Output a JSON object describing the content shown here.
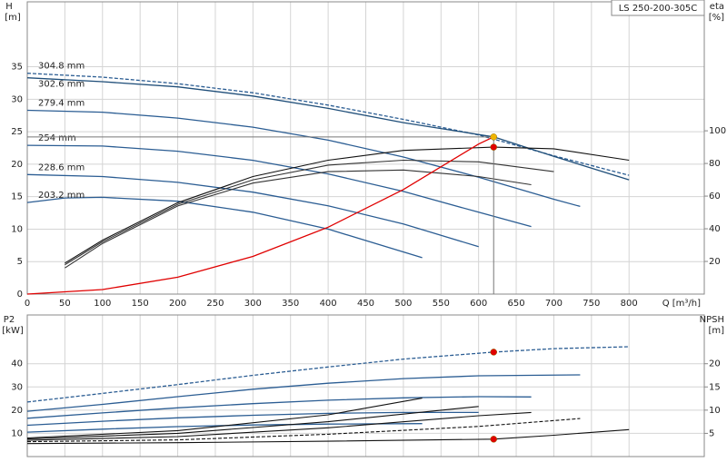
{
  "chart_data": [
    {
      "type": "line",
      "product": "LS 250-200-305C",
      "ylabel": "H",
      "yunit": "[m]",
      "y2label": "eta",
      "y2unit": "[%]",
      "xlabel": "Q [m³/h]",
      "xlim": [
        0,
        900
      ],
      "xticks": [
        0,
        50,
        100,
        150,
        200,
        250,
        300,
        350,
        400,
        450,
        500,
        550,
        600,
        650,
        700,
        750,
        800
      ],
      "ylim": [
        0,
        45
      ],
      "yticks": [
        0,
        5,
        10,
        15,
        20,
        25,
        30,
        35
      ],
      "y2lim": [
        0,
        179
      ],
      "y2ticks": [
        20,
        40,
        60,
        80,
        100
      ],
      "grid": true,
      "series": [
        {
          "name": "304.8 mm",
          "color": "#2b5d93",
          "dash": true,
          "x": [
            0,
            100,
            200,
            300,
            400,
            500,
            600,
            700,
            800
          ],
          "values": [
            34,
            33.4,
            32.4,
            31,
            29.1,
            26.9,
            24.5,
            21.3,
            18.3
          ]
        },
        {
          "name": "302.6 mm",
          "color": "#1f4e79",
          "x": [
            0,
            100,
            200,
            300,
            400,
            500,
            620,
            700,
            800
          ],
          "values": [
            33.3,
            32.7,
            31.9,
            30.5,
            28.6,
            26.4,
            24.2,
            21.2,
            17.6
          ]
        },
        {
          "name": "279.4 mm",
          "color": "#2b5d93",
          "x": [
            0,
            100,
            200,
            300,
            400,
            500,
            600,
            700,
            735
          ],
          "values": [
            28.3,
            28,
            27.1,
            25.7,
            23.7,
            21.1,
            18,
            14.6,
            13.5
          ]
        },
        {
          "name": "254 mm",
          "color": "#2b5d93",
          "x": [
            0,
            100,
            200,
            300,
            400,
            500,
            600,
            670
          ],
          "values": [
            22.9,
            22.8,
            22,
            20.6,
            18.5,
            15.8,
            12.6,
            10.4
          ]
        },
        {
          "name": "228.6 mm",
          "color": "#2b5d93",
          "x": [
            0,
            100,
            200,
            300,
            400,
            500,
            600
          ],
          "values": [
            18.4,
            18.1,
            17.2,
            15.7,
            13.6,
            10.8,
            7.3
          ]
        },
        {
          "name": "203.2 mm",
          "color": "#2b5d93",
          "x": [
            0,
            50,
            100,
            200,
            300,
            400,
            525
          ],
          "values": [
            14.1,
            14.8,
            14.9,
            14.3,
            12.6,
            10,
            5.6
          ]
        },
        {
          "color": "#111111",
          "axis": "y2",
          "x": [
            50,
            100,
            200,
            300,
            400,
            500,
            620,
            700,
            800
          ],
          "values": [
            19,
            33,
            56,
            72,
            82,
            88,
            90,
            89,
            82
          ]
        },
        {
          "color": "#333333",
          "axis": "y2",
          "x": [
            50,
            100,
            200,
            300,
            400,
            500,
            600,
            700
          ],
          "values": [
            18,
            32,
            55,
            70,
            79,
            82,
            81,
            75
          ]
        },
        {
          "color": "#333333",
          "axis": "y2",
          "x": [
            50,
            100,
            200,
            300,
            400,
            500,
            600,
            670
          ],
          "values": [
            16,
            31,
            54,
            68,
            75,
            76,
            72,
            67
          ]
        },
        {
          "color": "#e00000",
          "x": [
            0,
            100,
            200,
            300,
            400,
            500,
            600,
            620
          ],
          "values": [
            0,
            0.7,
            2.6,
            5.8,
            10.3,
            16.1,
            23.1,
            24.2
          ]
        },
        {
          "color": "#f0b400",
          "marker": true,
          "guides": true,
          "x": [
            620
          ],
          "values": [
            24.2
          ]
        },
        {
          "color": "#e00000",
          "marker": true,
          "axis": "y2",
          "x": [
            620
          ],
          "values": [
            90
          ]
        }
      ]
    },
    {
      "type": "line",
      "ylabel": "P2",
      "yunit": "[kW]",
      "y2label": "NPSH",
      "y2unit": "[m]",
      "xlim": [
        0,
        900
      ],
      "xticks": [
        0,
        50,
        100,
        150,
        200,
        250,
        300,
        350,
        400,
        450,
        500,
        550,
        600,
        650,
        700,
        750,
        800
      ],
      "ylim": [
        0,
        61
      ],
      "yticks": [
        10,
        20,
        30,
        40
      ],
      "y2lim": [
        0,
        30.5
      ],
      "y2ticks": [
        5,
        10,
        15,
        20
      ],
      "grid": true,
      "series": [
        {
          "color": "#2b5d93",
          "dash": true,
          "x": [
            0,
            100,
            200,
            300,
            400,
            500,
            620,
            700,
            800
          ],
          "values": [
            23.5,
            27.2,
            31,
            35,
            38.6,
            42,
            45,
            46.5,
            47.3
          ]
        },
        {
          "color": "#2b5d93",
          "x": [
            0,
            100,
            200,
            300,
            400,
            500,
            600,
            735
          ],
          "values": [
            19.5,
            22.5,
            25.8,
            29,
            31.6,
            33.6,
            34.8,
            35.2
          ]
        },
        {
          "color": "#2b5d93",
          "x": [
            0,
            100,
            200,
            300,
            400,
            500,
            600,
            670
          ],
          "values": [
            16.5,
            18.8,
            21,
            22.8,
            24.3,
            25.3,
            25.8,
            25.7
          ]
        },
        {
          "color": "#2b5d93",
          "x": [
            0,
            100,
            200,
            300,
            400,
            500,
            600
          ],
          "values": [
            13.5,
            15.2,
            16.7,
            17.8,
            18.6,
            19,
            19
          ]
        },
        {
          "color": "#2b5d93",
          "x": [
            0,
            100,
            200,
            300,
            400,
            525
          ],
          "values": [
            10.5,
            11.8,
            12.9,
            13.6,
            14,
            14.2
          ]
        },
        {
          "color": "#111111",
          "axis": "y2",
          "x": [
            0,
            200,
            400,
            620,
            700,
            800
          ],
          "values": [
            2.8,
            3,
            3.3,
            3.75,
            4.6,
            5.8
          ]
        },
        {
          "color": "#111111",
          "axis": "y2",
          "dash": true,
          "x": [
            0,
            200,
            400,
            600,
            735
          ],
          "values": [
            3.2,
            3.6,
            4.8,
            6.5,
            8.2
          ]
        },
        {
          "color": "#111111",
          "axis": "y2",
          "x": [
            0,
            200,
            400,
            600,
            670
          ],
          "values": [
            3.5,
            4.3,
            6.2,
            8.8,
            9.5
          ]
        },
        {
          "color": "#111111",
          "axis": "y2",
          "x": [
            0,
            200,
            400,
            600
          ],
          "values": [
            3.8,
            5,
            7.5,
            10.8
          ]
        },
        {
          "color": "#111111",
          "axis": "y2",
          "x": [
            0,
            200,
            400,
            525
          ],
          "values": [
            4,
            5.6,
            9,
            12.6
          ]
        },
        {
          "color": "#e00000",
          "marker": true,
          "x": [
            620
          ],
          "values": [
            45
          ]
        },
        {
          "color": "#e00000",
          "marker": true,
          "axis": "y2",
          "x": [
            620
          ],
          "values": [
            3.75
          ]
        }
      ]
    }
  ]
}
